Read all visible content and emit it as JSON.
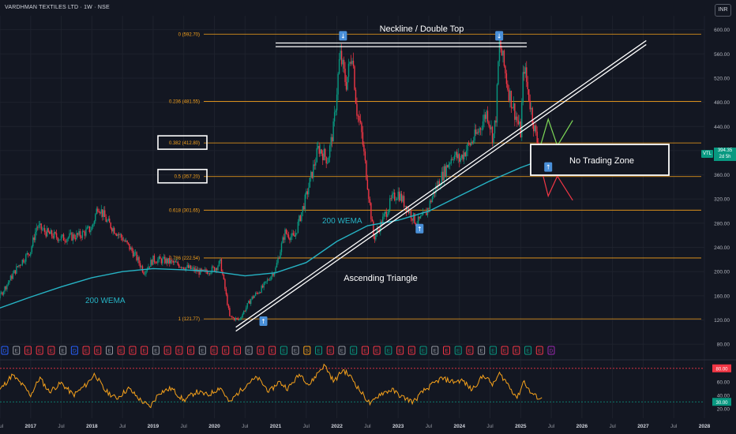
{
  "header": {
    "title": "VARDHMAN TEXTILES LTD · 1W · NSE",
    "currency_button": "INR"
  },
  "last_price": {
    "symbol": "VTL",
    "value": "394.35",
    "countdown": "2d 5h"
  },
  "chart_data": {
    "type": "line",
    "title": "VARDHMAN TEXTILES LTD · 1W · NSE",
    "y_axis": {
      "range": [
        75,
        610
      ],
      "ticks": [
        "600.00",
        "560.00",
        "520.00",
        "480.00",
        "440.00",
        "400.00",
        "360.00",
        "320.00",
        "280.00",
        "240.00",
        "200.00",
        "160.00",
        "120.00",
        "80.00"
      ]
    },
    "x_axis": {
      "range_years": [
        2016.5,
        2028.0
      ],
      "ticks": [
        {
          "t": 2016.5,
          "label": "Jul"
        },
        {
          "t": 2017,
          "label": "2017"
        },
        {
          "t": 2017.5,
          "label": "Jul"
        },
        {
          "t": 2018,
          "label": "2018"
        },
        {
          "t": 2018.5,
          "label": "Jul"
        },
        {
          "t": 2019,
          "label": "2019"
        },
        {
          "t": 2019.5,
          "label": "Jul"
        },
        {
          "t": 2020,
          "label": "2020"
        },
        {
          "t": 2020.5,
          "label": "Jul"
        },
        {
          "t": 2021,
          "label": "2021"
        },
        {
          "t": 2021.5,
          "label": "Jul"
        },
        {
          "t": 2022,
          "label": "2022"
        },
        {
          "t": 2022.5,
          "label": "Jul"
        },
        {
          "t": 2023,
          "label": "2023"
        },
        {
          "t": 2023.5,
          "label": "Jul"
        },
        {
          "t": 2024,
          "label": "2024"
        },
        {
          "t": 2024.5,
          "label": "Jul"
        },
        {
          "t": 2025,
          "label": "2025"
        },
        {
          "t": 2025.5,
          "label": "Jul"
        },
        {
          "t": 2026,
          "label": "2026"
        },
        {
          "t": 2026.5,
          "label": "Jul"
        },
        {
          "t": 2027,
          "label": "2027"
        },
        {
          "t": 2027.5,
          "label": "Jul"
        },
        {
          "t": 2028,
          "label": "2028"
        }
      ]
    },
    "price_path": [
      [
        2016.0,
        110
      ],
      [
        2016.5,
        160
      ],
      [
        2016.8,
        210
      ],
      [
        2017.0,
        235
      ],
      [
        2017.1,
        275
      ],
      [
        2017.3,
        262
      ],
      [
        2017.5,
        255
      ],
      [
        2017.8,
        260
      ],
      [
        2018.0,
        272
      ],
      [
        2018.1,
        310
      ],
      [
        2018.25,
        282
      ],
      [
        2018.5,
        255
      ],
      [
        2018.7,
        228
      ],
      [
        2018.85,
        200
      ],
      [
        2019.0,
        220
      ],
      [
        2019.2,
        218
      ],
      [
        2019.4,
        212
      ],
      [
        2019.6,
        205
      ],
      [
        2019.8,
        198
      ],
      [
        2020.0,
        205
      ],
      [
        2020.1,
        215
      ],
      [
        2020.25,
        125
      ],
      [
        2020.4,
        120
      ],
      [
        2020.6,
        155
      ],
      [
        2020.8,
        175
      ],
      [
        2021.0,
        205
      ],
      [
        2021.15,
        265
      ],
      [
        2021.3,
        255
      ],
      [
        2021.5,
        325
      ],
      [
        2021.7,
        405
      ],
      [
        2021.85,
        385
      ],
      [
        2021.95,
        440
      ],
      [
        2022.05,
        560
      ],
      [
        2022.15,
        510
      ],
      [
        2022.25,
        565
      ],
      [
        2022.32,
        470
      ],
      [
        2022.4,
        430
      ],
      [
        2022.5,
        345
      ],
      [
        2022.6,
        255
      ],
      [
        2022.7,
        275
      ],
      [
        2022.9,
        320
      ],
      [
        2023.0,
        330
      ],
      [
        2023.15,
        305
      ],
      [
        2023.3,
        280
      ],
      [
        2023.45,
        295
      ],
      [
        2023.6,
        335
      ],
      [
        2023.75,
        365
      ],
      [
        2023.9,
        395
      ],
      [
        2024.0,
        385
      ],
      [
        2024.1,
        400
      ],
      [
        2024.3,
        430
      ],
      [
        2024.45,
        465
      ],
      [
        2024.55,
        420
      ],
      [
        2024.6,
        460
      ],
      [
        2024.65,
        580
      ],
      [
        2024.72,
        545
      ],
      [
        2024.8,
        500
      ],
      [
        2024.9,
        465
      ],
      [
        2025.0,
        430
      ],
      [
        2025.05,
        545
      ],
      [
        2025.1,
        510
      ],
      [
        2025.2,
        450
      ],
      [
        2025.3,
        400
      ],
      [
        2025.35,
        394.35
      ]
    ],
    "ema_200_path": [
      [
        2016.0,
        110
      ],
      [
        2016.5,
        140
      ],
      [
        2017.0,
        158
      ],
      [
        2017.5,
        175
      ],
      [
        2018.0,
        190
      ],
      [
        2018.5,
        200
      ],
      [
        2019.0,
        205
      ],
      [
        2019.5,
        203
      ],
      [
        2020.0,
        200
      ],
      [
        2020.5,
        193
      ],
      [
        2021.0,
        198
      ],
      [
        2021.5,
        215
      ],
      [
        2022.0,
        250
      ],
      [
        2022.5,
        276
      ],
      [
        2023.0,
        285
      ],
      [
        2023.5,
        300
      ],
      [
        2024.0,
        325
      ],
      [
        2024.5,
        350
      ],
      [
        2025.0,
        372
      ],
      [
        2025.35,
        385
      ]
    ],
    "ema_label": "200 WEMA",
    "fibonacci": [
      {
        "label": "0 (592.70)",
        "price": 592.7
      },
      {
        "label": "0.236 (481.55)",
        "price": 481.55
      },
      {
        "label": "0.382 (412.80)",
        "price": 412.8,
        "boxed": true
      },
      {
        "label": "0.5 (357.20)",
        "price": 357.2,
        "boxed": true
      },
      {
        "label": "0.618 (301.65)",
        "price": 301.65
      },
      {
        "label": "0.786 (222.54)",
        "price": 222.54
      },
      {
        "label": "1 (121.77)",
        "price": 121.77
      }
    ],
    "annotations": {
      "neckline": "Neckline / Double Top",
      "triangle": "Ascending Triangle",
      "no_trade": "No Trading Zone",
      "ema_upper": "200 WEMA",
      "ema_lower": "200 WEMA"
    },
    "neckline_price": [
      578,
      572
    ],
    "trendline": {
      "start": [
        2020.35,
        108
      ],
      "end": [
        2027.05,
        582
      ]
    },
    "markers": {
      "down": [
        [
          2022.1,
          590
        ],
        [
          2024.65,
          590
        ]
      ],
      "up": [
        [
          2020.8,
          118
        ],
        [
          2023.35,
          271
        ],
        [
          2025.45,
          373
        ]
      ]
    },
    "forecast": {
      "green": [
        [
          2025.3,
          400
        ],
        [
          2025.45,
          452
        ],
        [
          2025.6,
          408
        ],
        [
          2025.85,
          450
        ]
      ],
      "red": [
        [
          2025.3,
          385
        ],
        [
          2025.45,
          325
        ],
        [
          2025.6,
          358
        ],
        [
          2025.85,
          318
        ]
      ]
    },
    "events": [
      "D",
      "E",
      "E",
      "E",
      "E",
      "E",
      "D",
      "E",
      "E",
      "E",
      "E",
      "E",
      "E",
      "E",
      "E",
      "E",
      "E",
      "E",
      "E",
      "E",
      "E",
      "E",
      "E",
      "E",
      "E",
      "E",
      "S",
      "E",
      "E",
      "E",
      "E",
      "E",
      "E",
      "E",
      "E",
      "E",
      "E",
      "E",
      "E",
      "E",
      "E",
      "E",
      "E",
      "E",
      "E",
      "E",
      "E",
      "D"
    ],
    "rsi": {
      "levels": [
        {
          "value": 80,
          "label": "80.00"
        },
        {
          "value": 30,
          "label": "30.00"
        }
      ],
      "ticks": [
        "60.00",
        "40.00",
        "20.00"
      ],
      "range": [
        15,
        88
      ],
      "path": [
        [
          2016.0,
          55
        ],
        [
          2016.3,
          62
        ],
        [
          2016.5,
          48
        ],
        [
          2016.7,
          70
        ],
        [
          2016.9,
          52
        ],
        [
          2017.0,
          40
        ],
        [
          2017.15,
          66
        ],
        [
          2017.3,
          45
        ],
        [
          2017.5,
          58
        ],
        [
          2017.7,
          40
        ],
        [
          2017.9,
          55
        ],
        [
          2018.05,
          72
        ],
        [
          2018.2,
          48
        ],
        [
          2018.4,
          35
        ],
        [
          2018.6,
          50
        ],
        [
          2018.8,
          32
        ],
        [
          2018.95,
          22
        ],
        [
          2019.1,
          44
        ],
        [
          2019.3,
          50
        ],
        [
          2019.5,
          32
        ],
        [
          2019.7,
          45
        ],
        [
          2019.9,
          40
        ],
        [
          2020.1,
          52
        ],
        [
          2020.25,
          28
        ],
        [
          2020.35,
          40
        ],
        [
          2020.55,
          58
        ],
        [
          2020.7,
          66
        ],
        [
          2020.9,
          45
        ],
        [
          2021.05,
          60
        ],
        [
          2021.2,
          50
        ],
        [
          2021.4,
          72
        ],
        [
          2021.55,
          55
        ],
        [
          2021.7,
          75
        ],
        [
          2021.8,
          85
        ],
        [
          2021.95,
          60
        ],
        [
          2022.1,
          78
        ],
        [
          2022.25,
          65
        ],
        [
          2022.35,
          50
        ],
        [
          2022.45,
          38
        ],
        [
          2022.55,
          26
        ],
        [
          2022.7,
          42
        ],
        [
          2022.9,
          48
        ],
        [
          2023.05,
          38
        ],
        [
          2023.25,
          30
        ],
        [
          2023.4,
          45
        ],
        [
          2023.55,
          55
        ],
        [
          2023.7,
          65
        ],
        [
          2023.9,
          60
        ],
        [
          2024.05,
          62
        ],
        [
          2024.2,
          48
        ],
        [
          2024.4,
          70
        ],
        [
          2024.55,
          55
        ],
        [
          2024.65,
          72
        ],
        [
          2024.75,
          62
        ],
        [
          2024.85,
          48
        ],
        [
          2024.95,
          36
        ],
        [
          2025.05,
          62
        ],
        [
          2025.15,
          45
        ],
        [
          2025.25,
          38
        ],
        [
          2025.35,
          34
        ]
      ]
    }
  },
  "colors": {
    "background": "#131722",
    "grid": "#1e222d",
    "fib": "#f7a21b",
    "ema": "#26b3c4",
    "up_candle": "#089981",
    "down_candle": "#f23645",
    "rsi_line": "#f7a21b",
    "rsi_upper": "#f23645",
    "rsi_lower": "#089981",
    "marker": "#4a90d9"
  }
}
